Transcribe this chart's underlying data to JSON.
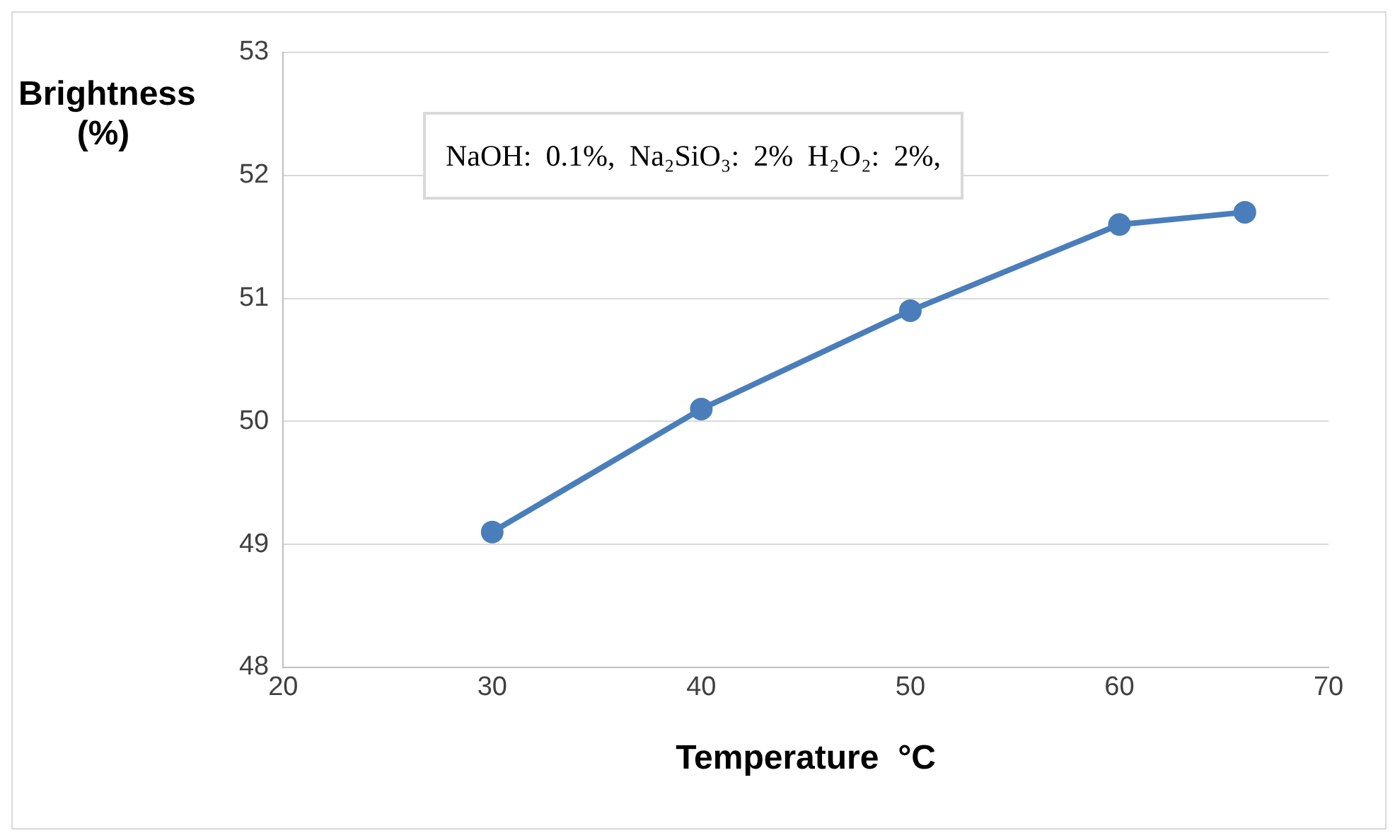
{
  "chart_data": {
    "type": "line",
    "xlabel": "Temperature  °C",
    "ylabel": "Brightness (%)",
    "x": [
      30,
      40,
      50,
      60,
      66
    ],
    "series": [
      {
        "color": "#4a7ebb",
        "values": [
          49.1,
          50.1,
          50.9,
          51.6,
          51.7
        ]
      }
    ],
    "xlim": [
      20,
      70
    ],
    "xticks": [
      20,
      30,
      40,
      50,
      60,
      70
    ],
    "ylim": [
      48,
      53
    ],
    "yticks": [
      48,
      49,
      50,
      51,
      52,
      53
    ],
    "grid": "y",
    "legend": false,
    "marker": "circle",
    "line_style": "solid",
    "annotations": [
      "NaOH:  0.1%, Na₂SiO₃: 2% H₂O₂:  2%,"
    ]
  }
}
